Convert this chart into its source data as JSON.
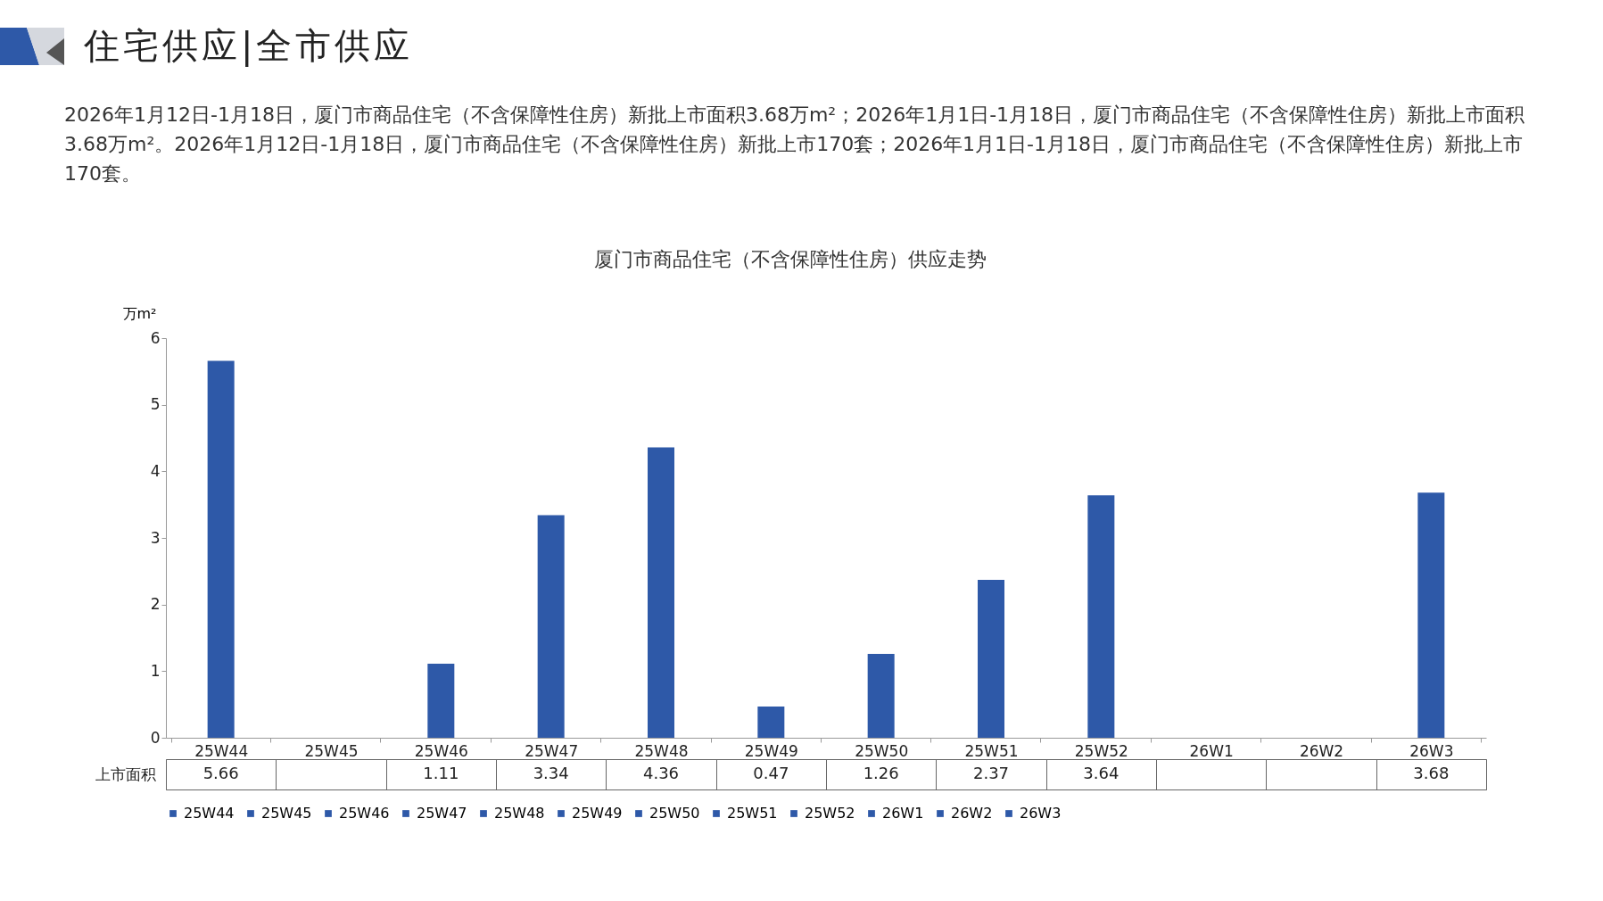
{
  "chart_data": {
    "type": "bar",
    "title": "厦门市商品住宅（不含保障性住房）供应走势",
    "annotations": [
      "住宅供应|全市供应",
      "2026年1月12日-1月18日，厦门市商品住宅（不含保障性住房）新批上市面积3.68万m²；2026年1月1日-1月18日，厦门市商品住宅（不含保障性住房）新批上市面积3.68万m²。2026年1月12日-1月18日，厦门市商品住宅（不含保障性住房）新批上市170套；2026年1月1日-1月18日，厦门市商品住宅（不含保障性住房）新批上市170套。"
    ],
    "ylabel": "万m²",
    "categories": [
      "25W44",
      "25W45",
      "25W46",
      "25W47",
      "25W48",
      "25W49",
      "25W50",
      "25W51",
      "25W52",
      "26W1",
      "26W2",
      "26W3"
    ],
    "series": [
      {
        "name": "上市面积",
        "color": "#2e59a8",
        "values": [
          5.66,
          null,
          1.11,
          3.34,
          4.36,
          0.47,
          1.26,
          2.37,
          3.64,
          null,
          null,
          3.68
        ]
      }
    ],
    "ylim": [
      0,
      6
    ],
    "yticks": [
      0,
      1,
      2,
      3,
      4,
      5,
      6
    ],
    "data_labels": true,
    "legend": "bottom"
  }
}
